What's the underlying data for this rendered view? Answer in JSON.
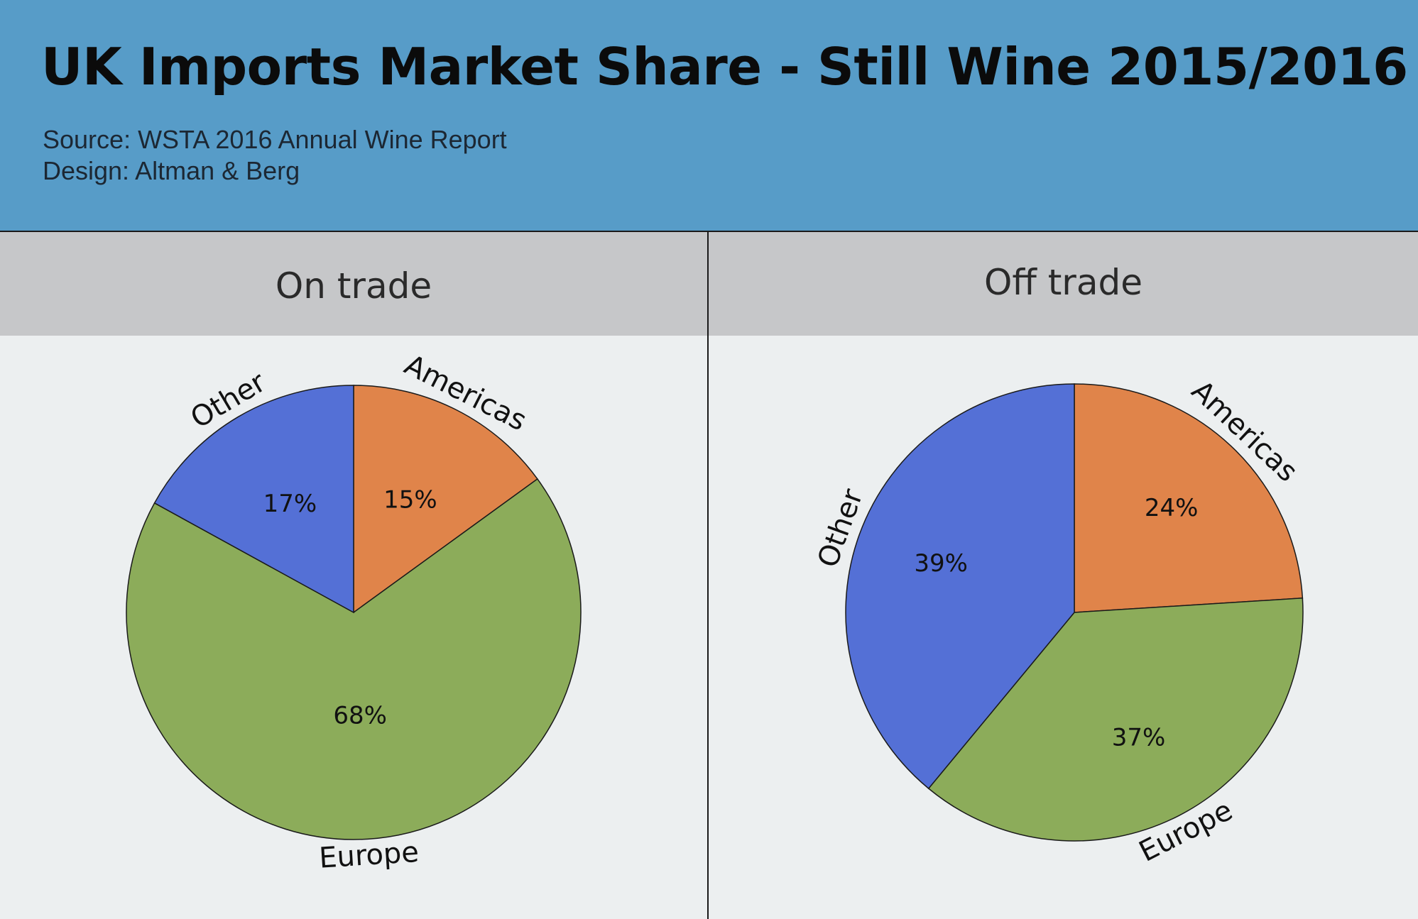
{
  "header": {
    "title": "UK Imports Market Share - Still Wine 2015/2016",
    "source": "Source: WSTA 2016 Annual Wine Report",
    "design": "Design: Altman & Berg"
  },
  "colors": {
    "header_bg": "#579cc8",
    "panel_header_bg": "#c6c7c9",
    "chart_bg": "#eceff0",
    "other": "#5470d6",
    "americas": "#e0844a",
    "europe": "#8cac5a"
  },
  "chart_data": [
    {
      "type": "pie",
      "title": "On trade",
      "categories": [
        "Americas",
        "Europe",
        "Other"
      ],
      "values": [
        15,
        68,
        17
      ],
      "labels": [
        "15%",
        "68%",
        "17%"
      ],
      "start": "12 o'clock, clockwise"
    },
    {
      "type": "pie",
      "title": "Off trade",
      "categories": [
        "Americas",
        "Europe",
        "Other"
      ],
      "values": [
        24,
        37,
        39
      ],
      "labels": [
        "24%",
        "37%",
        "39%"
      ],
      "start": "12 o'clock, clockwise"
    }
  ]
}
